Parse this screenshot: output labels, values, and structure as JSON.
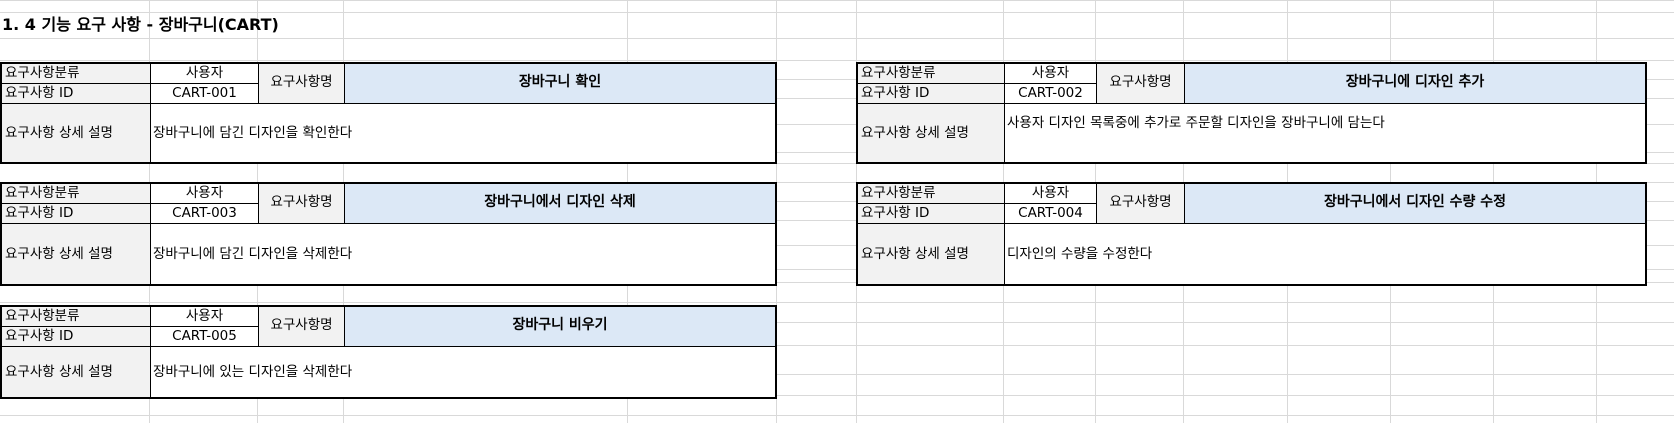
{
  "sheet": {
    "title": "1. 4 기능 요구 사항 - 장바구니(CART)"
  },
  "labels": {
    "category": "요구사항분류",
    "id": "요구사항 ID",
    "user": "사용자",
    "name": "요구사항명",
    "detail": "요구사항 상세 설명"
  },
  "requirements": [
    {
      "id": "CART-001",
      "name": "장바구니 확인",
      "detail": "장바구니에 담긴 디자인을 확인한다"
    },
    {
      "id": "CART-002",
      "name": "장바구니에 디자인 추가",
      "detail": "사용자 디자인 목록중에 추가로 주문할 디자인을 장바구니에 담는다"
    },
    {
      "id": "CART-003",
      "name": "장바구니에서 디자인 삭제",
      "detail": "장바구니에 담긴 디자인을 삭제한다"
    },
    {
      "id": "CART-004",
      "name": "장바구니에서 디자인 수량 수정",
      "detail": "디자인의 수량을 수정한다"
    },
    {
      "id": "CART-005",
      "name": "장바구니 비우기",
      "detail": "장바구니에 있는 디자인을 삭제한다"
    }
  ],
  "colors": {
    "header_fill": "#dce8f6",
    "label_fill": "#f2f2f2",
    "grid": "#d9d9d9"
  }
}
